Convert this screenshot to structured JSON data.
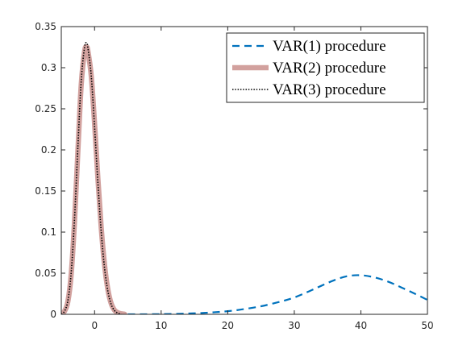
{
  "chart_data": {
    "type": "line",
    "title": "",
    "xlabel": "",
    "ylabel": "",
    "xlim": [
      -5,
      50
    ],
    "ylim": [
      0,
      0.35
    ],
    "x_ticks": [
      0,
      10,
      20,
      30,
      40,
      50
    ],
    "y_ticks": [
      0,
      0.05,
      0.1,
      0.15,
      0.2,
      0.25,
      0.3,
      0.35
    ],
    "x_tick_labels": [
      "0",
      "10",
      "20",
      "30",
      "40",
      "50"
    ],
    "y_tick_labels": [
      "0",
      "0.05",
      "0.1",
      "0.15",
      "0.2",
      "0.25",
      "0.3",
      "0.35"
    ],
    "grid": false,
    "legend_position": "top-right",
    "series": [
      {
        "name": "VAR(1) procedure",
        "color": "#0072BD",
        "style": "dashed",
        "x": [
          5,
          10,
          15,
          18,
          20,
          22,
          25,
          28,
          30,
          32,
          34,
          36,
          38,
          40,
          42,
          44,
          46,
          48,
          50
        ],
        "y": [
          0.0,
          0.0002,
          0.0012,
          0.0025,
          0.0038,
          0.0058,
          0.0098,
          0.0156,
          0.0205,
          0.0272,
          0.0345,
          0.0415,
          0.0465,
          0.0475,
          0.045,
          0.04,
          0.033,
          0.0255,
          0.0175
        ]
      },
      {
        "name": "VAR(2) procedure",
        "color": "#D2A19E",
        "style": "solid-thick",
        "x": [
          -5,
          -4.5,
          -4,
          -3.5,
          -3,
          -2.5,
          -2,
          -1.5,
          -1.2,
          -1,
          -0.5,
          0,
          0.5,
          1,
          1.5,
          2,
          2.5,
          3,
          3.5,
          4,
          4.5
        ],
        "y": [
          0.0,
          0.004,
          0.016,
          0.05,
          0.115,
          0.2,
          0.28,
          0.32,
          0.325,
          0.32,
          0.29,
          0.232,
          0.165,
          0.105,
          0.06,
          0.03,
          0.013,
          0.005,
          0.002,
          0.0007,
          0.0002
        ]
      },
      {
        "name": "VAR(3) procedure",
        "color": "#000000",
        "style": "dotted",
        "x": [
          -5,
          -4.5,
          -4,
          -3.5,
          -3,
          -2.5,
          -2,
          -1.5,
          -1.2,
          -1,
          -0.5,
          0,
          0.5,
          1,
          1.5,
          2,
          2.5,
          3,
          3.5,
          4
        ],
        "y": [
          0.0,
          0.004,
          0.017,
          0.052,
          0.118,
          0.205,
          0.285,
          0.325,
          0.33,
          0.324,
          0.29,
          0.228,
          0.16,
          0.1,
          0.056,
          0.028,
          0.012,
          0.0045,
          0.0015,
          0.0004
        ]
      }
    ]
  }
}
